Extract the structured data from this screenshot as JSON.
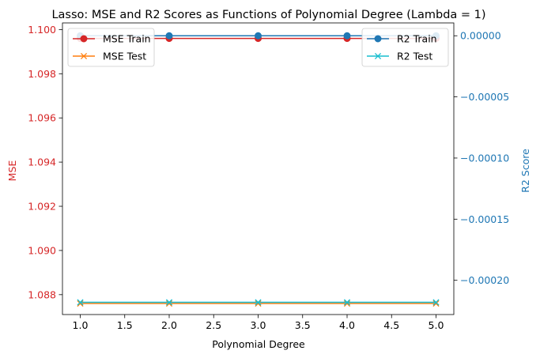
{
  "chart_data": {
    "type": "line",
    "title": "Lasso: MSE and R2 Scores as Functions of Polynomial Degree (Lambda = 1)",
    "xlabel": "Polynomial Degree",
    "x": [
      1,
      2,
      3,
      4,
      5
    ],
    "x_ticks": [
      "1.0",
      "1.5",
      "2.0",
      "2.5",
      "3.0",
      "3.5",
      "4.0",
      "4.5",
      "5.0"
    ],
    "x_tick_values": [
      1.0,
      1.5,
      2.0,
      2.5,
      3.0,
      3.5,
      4.0,
      4.5,
      5.0
    ],
    "xlim": [
      0.8,
      5.2
    ],
    "left_axis": {
      "label": "MSE",
      "color": "#d62728",
      "ylim": [
        1.0871,
        1.1003
      ],
      "ticks": [
        "1.088",
        "1.090",
        "1.092",
        "1.094",
        "1.096",
        "1.098",
        "1.100"
      ],
      "tick_values": [
        1.088,
        1.09,
        1.092,
        1.094,
        1.096,
        1.098,
        1.1
      ]
    },
    "right_axis": {
      "label": "R2 Score",
      "color": "#1f77b4",
      "ylim": [
        -0.000228,
        1.05e-05
      ],
      "ticks": [
        "0.00000",
        "−0.00005",
        "−0.00010",
        "−0.00015",
        "−0.00020"
      ],
      "tick_values": [
        0.0,
        -5e-05,
        -0.0001,
        -0.00015,
        -0.0002
      ]
    },
    "series": [
      {
        "name": "MSE Train",
        "axis": "left",
        "color": "#d62728",
        "marker": "circle",
        "values": [
          1.0996,
          1.0996,
          1.0996,
          1.0996,
          1.0996
        ]
      },
      {
        "name": "MSE Test",
        "axis": "left",
        "color": "#ff7f0e",
        "marker": "x",
        "values": [
          1.0876,
          1.0876,
          1.0876,
          1.0876,
          1.0876
        ]
      },
      {
        "name": "R2 Train",
        "axis": "right",
        "color": "#1f77b4",
        "marker": "circle",
        "values": [
          0.0,
          0.0,
          0.0,
          0.0,
          0.0
        ]
      },
      {
        "name": "R2 Test",
        "axis": "right",
        "color": "#17becf",
        "marker": "x",
        "values": [
          -0.000218,
          -0.000218,
          -0.000218,
          -0.000218,
          -0.000218
        ]
      }
    ],
    "legends": [
      {
        "position": "upper-left",
        "series": [
          "MSE Train",
          "MSE Test"
        ]
      },
      {
        "position": "upper-right",
        "series": [
          "R2 Train",
          "R2 Test"
        ]
      }
    ],
    "grid": false
  }
}
